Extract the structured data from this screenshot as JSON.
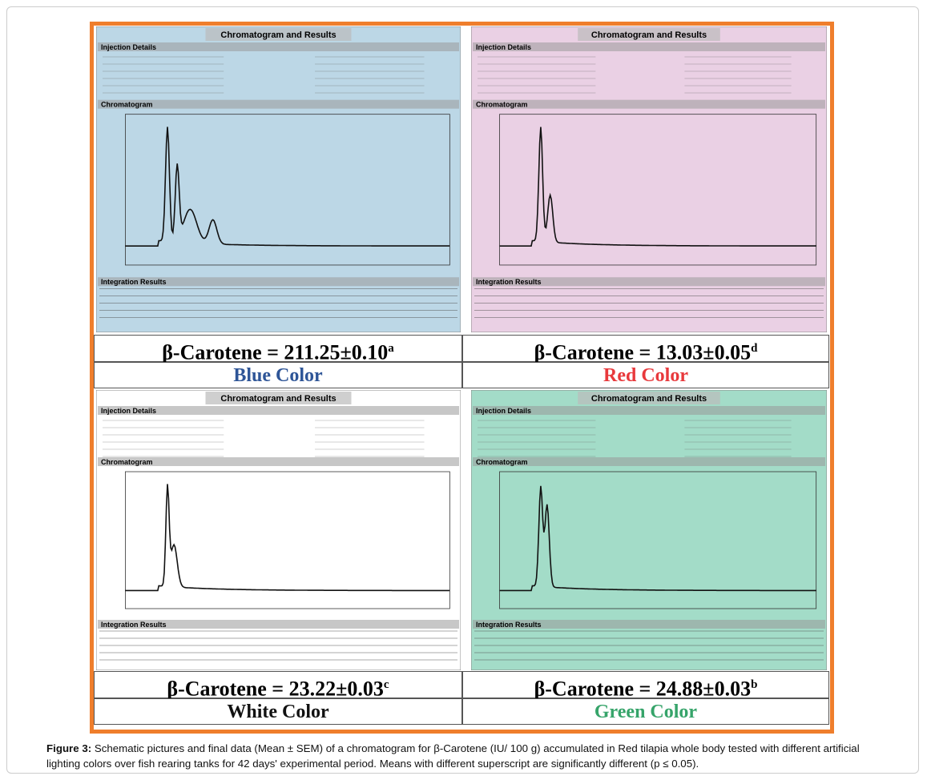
{
  "figure": {
    "panels": [
      {
        "header": "Chromatogram and Results",
        "sections": [
          "Injection Details",
          "Chromatogram",
          "Integration Results"
        ],
        "result": "β-Carotene = 211.25±0.10",
        "superscript": "a",
        "label": "Blue Color",
        "color": "#2e5597",
        "background": "#bcd7e6"
      },
      {
        "header": "Chromatogram and Results",
        "sections": [
          "Injection Details",
          "Chromatogram",
          "Integration Results"
        ],
        "result": "β-Carotene = 13.03±0.05",
        "superscript": "d",
        "label": "Red Color",
        "color": "#e8393c",
        "background": "#ead0e4"
      },
      {
        "header": "Chromatogram and Results",
        "sections": [
          "Injection Details",
          "Chromatogram",
          "Integration Results"
        ],
        "result": "β-Carotene = 23.22±0.03",
        "superscript": "c",
        "label": "White Color",
        "color": "#111111",
        "background": "#ffffff"
      },
      {
        "header": "Chromatogram and Results",
        "sections": [
          "Injection Details",
          "Chromatogram",
          "Integration Results"
        ],
        "result": "β-Carotene = 24.88±0.03",
        "superscript": "b",
        "label": "Green Color",
        "color": "#36a46a",
        "background": "#a3dcc8"
      }
    ],
    "caption": {
      "label": "Figure 3:",
      "text": " Schematic pictures and final data (Mean ± SEM) of a chromatogram for β-Carotene (IU/ 100 g) accumulated in Red tilapia whole body tested with different artificial lighting colors over fish rearing tanks for 42 days' experimental period. Means with different superscript are significantly different (p ≤ 0.05)."
    }
  }
}
